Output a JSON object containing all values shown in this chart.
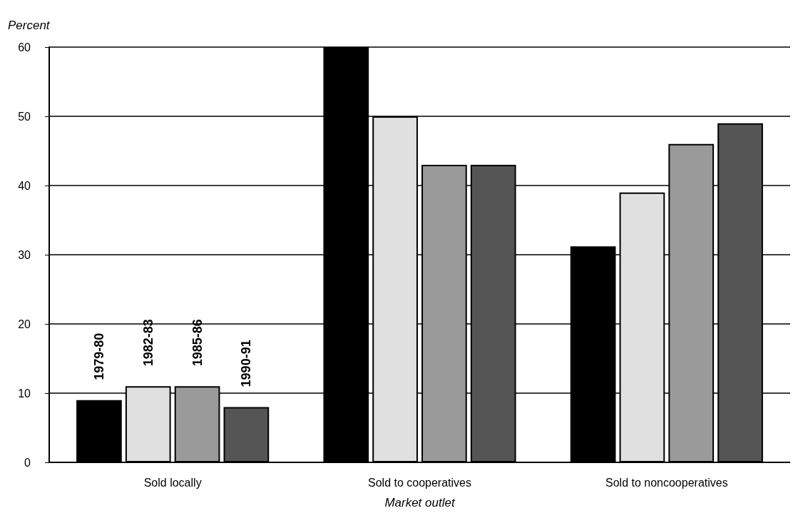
{
  "chart_data": {
    "type": "bar",
    "xlabel": "Market outlet",
    "ylabel": "Percent",
    "categories": [
      "Sold locally",
      "Sold to cooperatives",
      "Sold to noncooperatives"
    ],
    "series": [
      {
        "name": "1979-80",
        "color": "#000000",
        "values": [
          9,
          60,
          31.2
        ]
      },
      {
        "name": "1982-83",
        "color": "#e0e0e0",
        "values": [
          11,
          50,
          39
        ]
      },
      {
        "name": "1985-86",
        "color": "#9a9a9a",
        "values": [
          11,
          43,
          46
        ]
      },
      {
        "name": "1990-91",
        "color": "#555555",
        "values": [
          8,
          43,
          49
        ]
      }
    ],
    "ylim": [
      0,
      60
    ],
    "yticks": [
      0,
      10,
      20,
      30,
      40,
      50,
      60
    ],
    "grid": "y",
    "legend": false
  }
}
